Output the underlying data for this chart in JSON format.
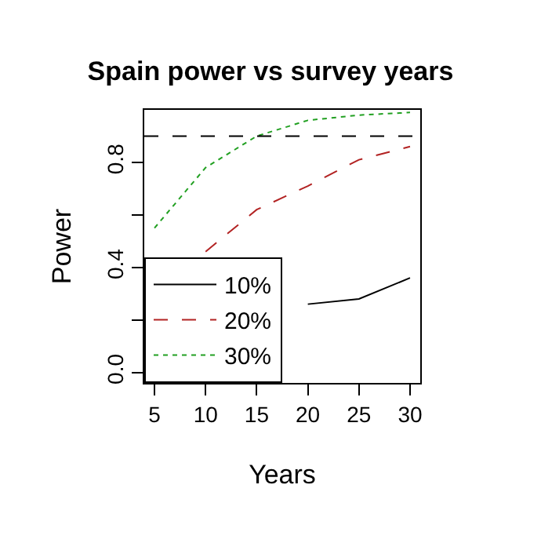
{
  "chart_data": {
    "type": "line",
    "title": "Spain power vs survey years",
    "xlabel": "Years",
    "ylabel": "Power",
    "x": [
      5,
      10,
      15,
      20,
      25,
      30
    ],
    "series": [
      {
        "name": "10%",
        "color": "#000000",
        "line_style": "solid",
        "values": [
          null,
          null,
          null,
          0.26,
          0.28,
          0.36
        ]
      },
      {
        "name": "20%",
        "color": "#b22222",
        "line_style": "dashed",
        "values": [
          null,
          0.46,
          0.62,
          0.71,
          0.81,
          0.86
        ]
      },
      {
        "name": "30%",
        "color": "#22a022",
        "line_style": "dotted",
        "values": [
          0.55,
          0.78,
          0.9,
          0.96,
          0.98,
          0.99
        ]
      }
    ],
    "xlim": [
      4,
      31
    ],
    "xticks": [
      5,
      10,
      15,
      20,
      25,
      30
    ],
    "ylim": [
      -0.04,
      1.0
    ],
    "yticks": [
      {
        "value": 0.0,
        "label": "0.0"
      },
      {
        "value": 0.2,
        "label": null
      },
      {
        "value": 0.4,
        "label": "0.4"
      },
      {
        "value": 0.6,
        "label": null
      },
      {
        "value": 0.8,
        "label": "0.8"
      }
    ],
    "ref_lines": [
      {
        "axis": "y",
        "value": 0.9,
        "color": "#000000",
        "line_style": "dashed"
      }
    ],
    "legend": "bottom left",
    "marker": "none"
  }
}
